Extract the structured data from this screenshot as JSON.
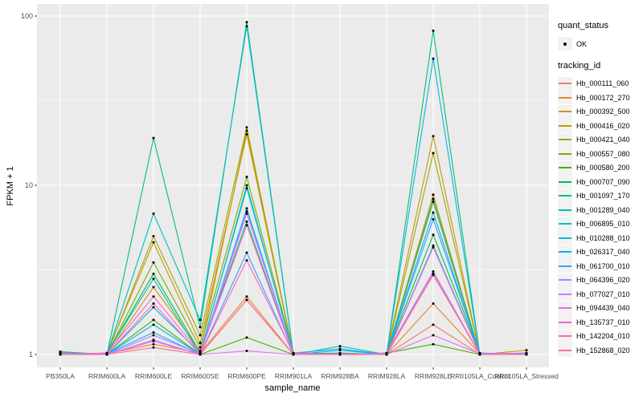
{
  "legend": {
    "quant_status_title": "quant_status",
    "ok_label": "OK",
    "tracking_title": "tracking_id"
  },
  "colors": {
    "figure_bg": "#FFFFFF",
    "panel_bg": "#EBEBEB",
    "grid": "#FFFFFF",
    "axis_text": "#4D4D4D",
    "tick_mark": "#333333",
    "marker": "#000000",
    "legend_key_bg": "#F2F2F2"
  },
  "chart_data": {
    "type": "line",
    "title": "",
    "xlabel": "sample_name",
    "ylabel": "FPKM + 1",
    "y_scale": "log10",
    "y_ticks": [
      1,
      10,
      100
    ],
    "y_tick_labels": [
      "1",
      "10",
      "100"
    ],
    "y_minor_ticks": [
      3.1623,
      31.623
    ],
    "ylim": [
      0.84,
      118
    ],
    "grid": true,
    "legend_position": "right",
    "point_legend": {
      "title": "quant_status",
      "label": "OK",
      "shape": "point"
    },
    "categories": [
      "PB350LA",
      "RRIM600LA",
      "RRIM600LE",
      "RRIM600SE",
      "RRIM600PE",
      "RRIM901LA",
      "RRIM928BA",
      "RRIM928LA",
      "RRIM928LE",
      "RRII105LA_Control",
      "RRII105LA_Stressed"
    ],
    "series": [
      {
        "name": "Hb_000111_060",
        "color": "#F8766D",
        "values": [
          1.02,
          1.0,
          1.2,
          1.0,
          2.1,
          1.0,
          1.01,
          1.0,
          1.5,
          1.0,
          1.01
        ]
      },
      {
        "name": "Hb_000172_270",
        "color": "#EA8331",
        "values": [
          1.0,
          1.01,
          1.15,
          1.02,
          2.2,
          1.0,
          1.0,
          1.0,
          2.0,
          1.01,
          1.0
        ]
      },
      {
        "name": "Hb_000392_500",
        "color": "#D89000",
        "values": [
          1.03,
          1.0,
          2.5,
          1.05,
          21.0,
          1.01,
          1.0,
          1.0,
          8.8,
          1.0,
          1.06
        ]
      },
      {
        "name": "Hb_000416_020",
        "color": "#C09B00",
        "values": [
          1.0,
          1.02,
          4.6,
          1.17,
          20.0,
          1.0,
          1.0,
          1.01,
          19.5,
          1.0,
          1.0
        ]
      },
      {
        "name": "Hb_000421_040",
        "color": "#A3A500",
        "values": [
          1.01,
          1.0,
          5.0,
          1.3,
          22.0,
          1.0,
          1.02,
          1.0,
          15.5,
          1.01,
          1.0
        ]
      },
      {
        "name": "Hb_000557_080",
        "color": "#7CAE00",
        "values": [
          1.0,
          1.0,
          3.5,
          1.1,
          11.2,
          1.02,
          1.0,
          1.0,
          8.0,
          1.0,
          1.02
        ]
      },
      {
        "name": "Hb_000580_200",
        "color": "#39B600",
        "values": [
          1.02,
          1.0,
          1.6,
          1.0,
          1.26,
          1.0,
          1.0,
          1.02,
          1.15,
          1.0,
          1.02
        ]
      },
      {
        "name": "Hb_000707_090",
        "color": "#00BB4E",
        "values": [
          1.02,
          1.01,
          3.0,
          1.03,
          6.1,
          1.0,
          1.0,
          1.0,
          5.1,
          1.02,
          1.0
        ]
      },
      {
        "name": "Hb_001097_170",
        "color": "#00BF7D",
        "values": [
          1.04,
          1.0,
          19.0,
          1.45,
          92.0,
          1.01,
          1.02,
          1.0,
          82.0,
          1.0,
          1.01
        ]
      },
      {
        "name": "Hb_001289_040",
        "color": "#00C1A3",
        "values": [
          1.0,
          1.02,
          2.8,
          1.0,
          10.0,
          1.0,
          1.0,
          1.01,
          8.3,
          1.0,
          1.0
        ]
      },
      {
        "name": "Hb_006895_010",
        "color": "#00BFC4",
        "values": [
          1.03,
          1.0,
          6.8,
          1.6,
          87.0,
          1.0,
          1.12,
          1.0,
          4.4,
          1.01,
          1.0
        ]
      },
      {
        "name": "Hb_010288_010",
        "color": "#00BAE0",
        "values": [
          1.0,
          1.0,
          1.9,
          1.02,
          9.6,
          1.02,
          1.08,
          1.0,
          56.0,
          1.0,
          1.01
        ]
      },
      {
        "name": "Hb_026317_040",
        "color": "#00B0F6",
        "values": [
          1.01,
          1.0,
          1.5,
          1.0,
          7.3,
          1.0,
          1.06,
          1.0,
          6.9,
          1.0,
          1.0
        ]
      },
      {
        "name": "Hb_061700_010",
        "color": "#35A2FF",
        "values": [
          1.0,
          1.01,
          1.35,
          1.0,
          4.0,
          1.0,
          1.0,
          1.0,
          6.3,
          1.02,
          1.0
        ]
      },
      {
        "name": "Hb_064396_020",
        "color": "#9590FF",
        "values": [
          1.0,
          1.0,
          1.3,
          1.01,
          7.0,
          1.0,
          1.0,
          1.02,
          3.1,
          1.0,
          1.0
        ]
      },
      {
        "name": "Hb_077027_010",
        "color": "#C77CFF",
        "values": [
          1.02,
          1.0,
          1.2,
          1.0,
          6.8,
          1.01,
          1.0,
          1.0,
          3.0,
          1.0,
          1.02
        ]
      },
      {
        "name": "Hb_094439_040",
        "color": "#E76BF3",
        "values": [
          1.0,
          1.0,
          1.22,
          1.0,
          1.05,
          1.0,
          1.01,
          1.0,
          1.3,
          1.01,
          1.02
        ]
      },
      {
        "name": "Hb_135737_010",
        "color": "#FA62DB",
        "values": [
          1.0,
          1.02,
          2.2,
          1.02,
          5.8,
          1.0,
          1.0,
          1.0,
          4.3,
          1.0,
          1.0
        ]
      },
      {
        "name": "Hb_142204_010",
        "color": "#FF62BC",
        "values": [
          1.01,
          1.0,
          2.0,
          1.0,
          3.6,
          1.02,
          1.0,
          1.01,
          3.0,
          1.0,
          1.0
        ]
      },
      {
        "name": "Hb_152868_020",
        "color": "#FF6A98",
        "values": [
          1.0,
          1.0,
          1.1,
          1.0,
          2.1,
          1.0,
          1.0,
          1.0,
          2.95,
          1.0,
          1.0
        ]
      }
    ]
  }
}
